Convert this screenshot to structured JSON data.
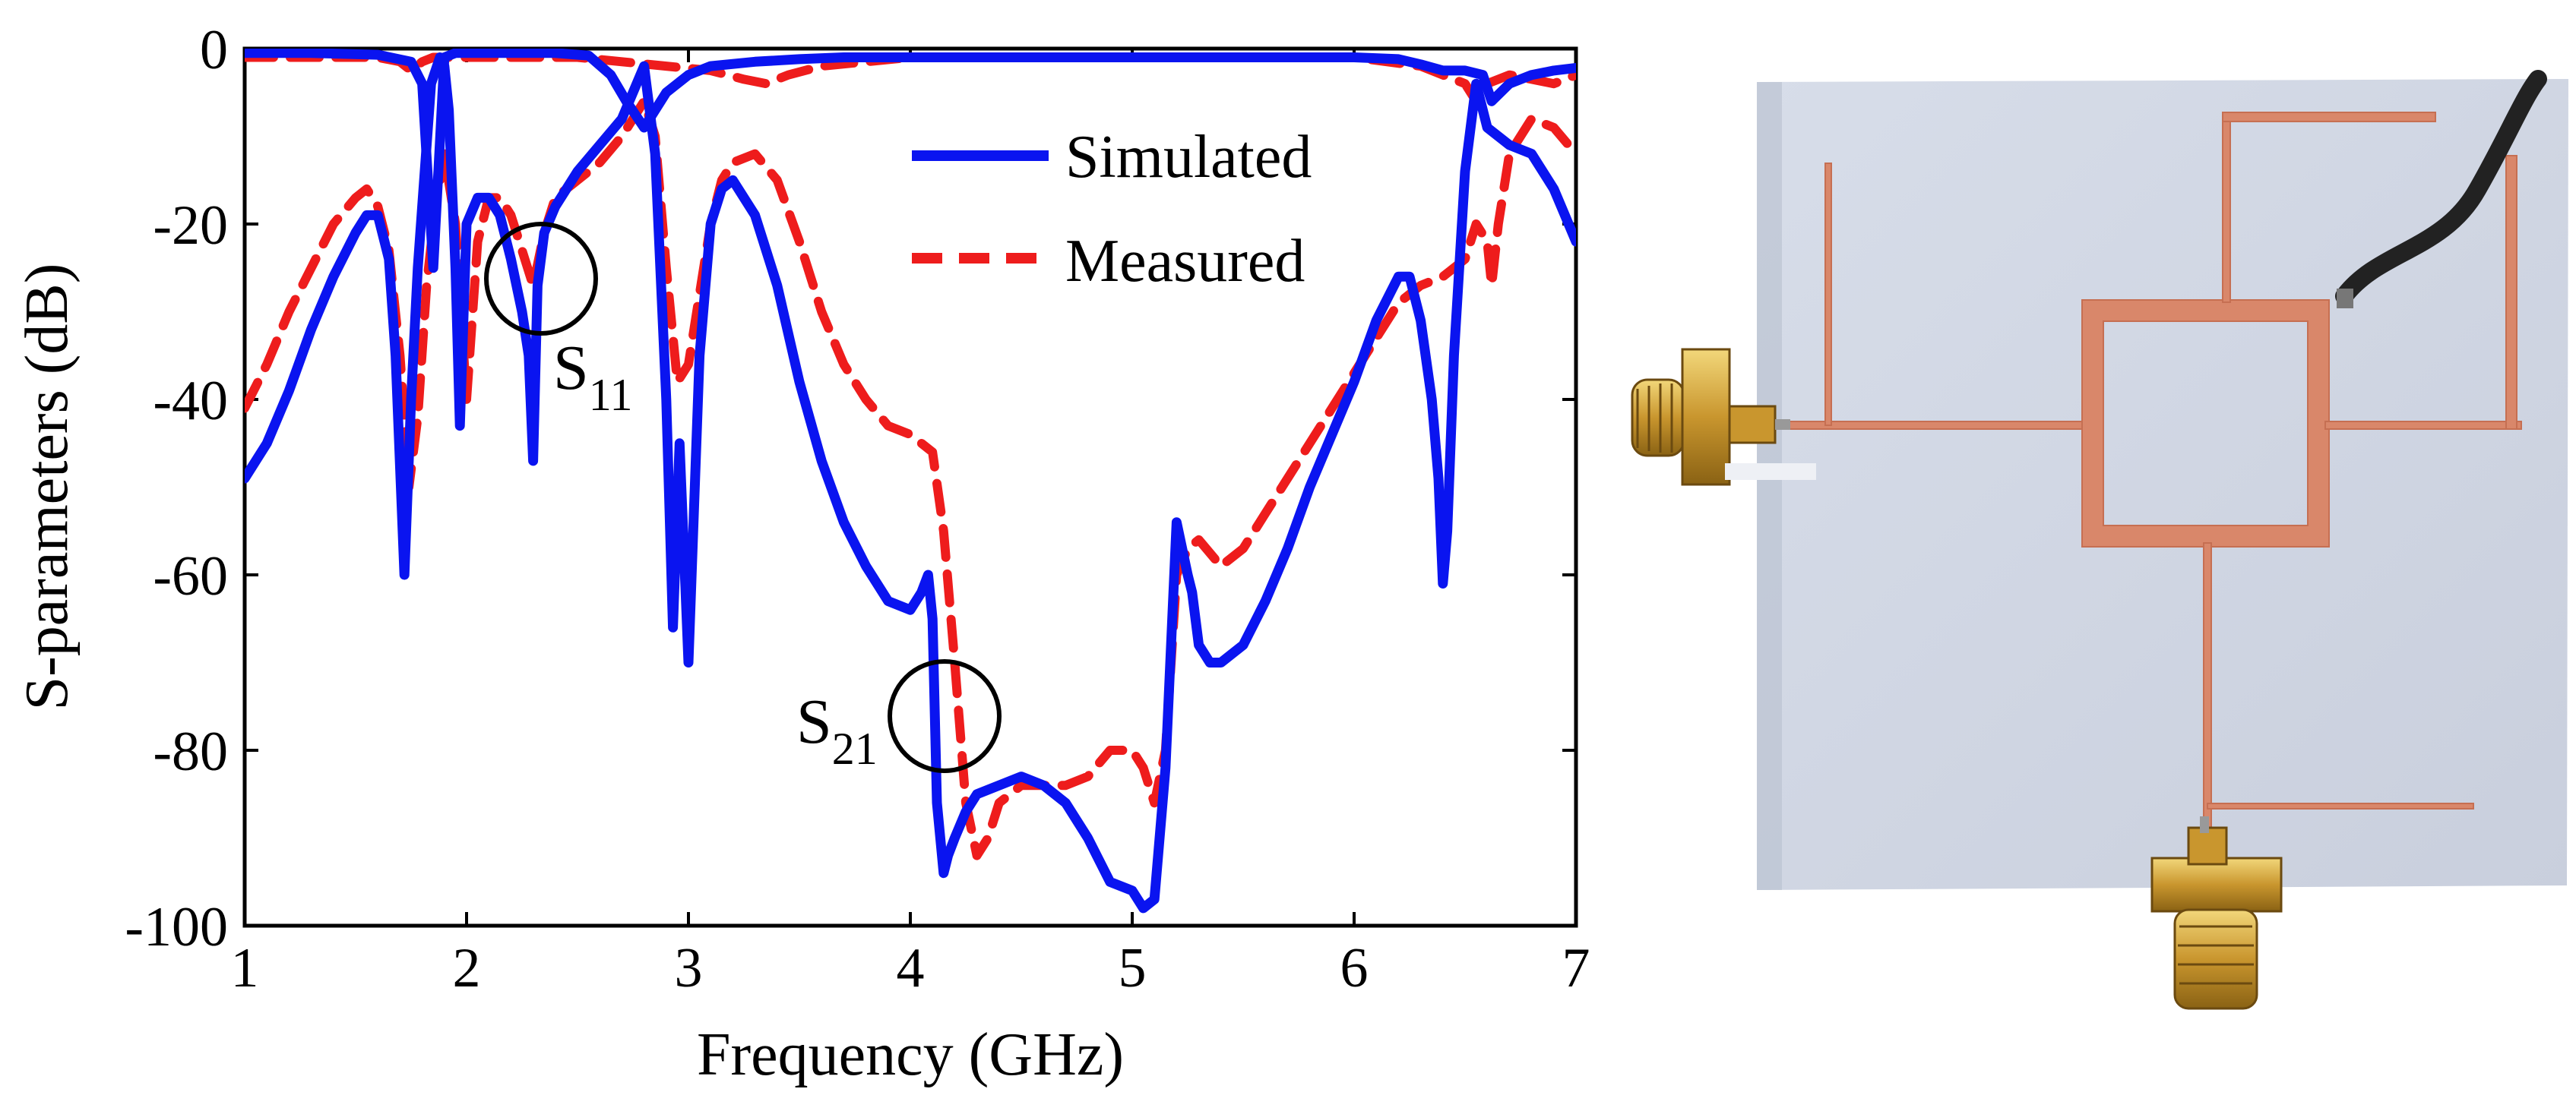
{
  "chart_data": {
    "type": "line",
    "xlabel": "Frequency (GHz)",
    "ylabel": "S-parameters (dB)",
    "xlim": [
      1,
      7
    ],
    "ylim": [
      -100,
      0
    ],
    "xticks": [
      "1",
      "2",
      "3",
      "4",
      "5",
      "6",
      "7"
    ],
    "yticks": [
      "0",
      "-20",
      "-40",
      "-60",
      "-80",
      "-100"
    ],
    "legend": {
      "position": "top-right",
      "entries": [
        "Simulated",
        "Measured"
      ]
    },
    "colors": {
      "simulated": "#0a14f0",
      "measured": "#ee1c1c"
    },
    "annotations": [
      {
        "text": "S",
        "sub": "11",
        "x": 2.32,
        "y": -26
      },
      {
        "text": "S",
        "sub": "21",
        "x": 4.2,
        "y": -76
      }
    ],
    "series": [
      {
        "name": "Simulated S11",
        "legend": "Simulated",
        "x": [
          1.0,
          1.1,
          1.2,
          1.3,
          1.4,
          1.5,
          1.55,
          1.6,
          1.65,
          1.68,
          1.72,
          1.75,
          1.78,
          1.8,
          1.84,
          1.88,
          1.9,
          1.92,
          1.95,
          1.97,
          2.0,
          2.05,
          2.1,
          2.15,
          2.2,
          2.25,
          2.28,
          2.3,
          2.32,
          2.35,
          2.4,
          2.45,
          2.5,
          2.6,
          2.7,
          2.8,
          2.85,
          2.9,
          2.93,
          2.96,
          3.0,
          3.05,
          3.1,
          3.15,
          3.2,
          3.3,
          3.4,
          3.5,
          3.6,
          3.7,
          3.8,
          3.9,
          4.0,
          4.05,
          4.08,
          4.1,
          4.12,
          4.15,
          4.17,
          4.2,
          4.25,
          4.3,
          4.4,
          4.5,
          4.6,
          4.7,
          4.8,
          4.9,
          5.0,
          5.05,
          5.1,
          5.15,
          5.2,
          5.25,
          5.27,
          5.3,
          5.35,
          5.4,
          5.5,
          5.6,
          5.7,
          5.8,
          5.9,
          6.0,
          6.1,
          6.2,
          6.25,
          6.3,
          6.35,
          6.38,
          6.4,
          6.42,
          6.45,
          6.5,
          6.55,
          6.6,
          6.65,
          6.7,
          6.8,
          6.9,
          7.0
        ],
        "y": [
          -49,
          -45,
          -39,
          -32,
          -26,
          -21,
          -19,
          -19,
          -24,
          -35,
          -60,
          -40,
          -25,
          -18,
          -4,
          -1,
          -2,
          -7,
          -25,
          -43,
          -20,
          -17,
          -17,
          -19,
          -24,
          -30,
          -35,
          -47,
          -27,
          -21,
          -18,
          -16,
          -14,
          -11,
          -8,
          -2,
          -12,
          -40,
          -66,
          -45,
          -70,
          -35,
          -20,
          -16,
          -15,
          -19,
          -27,
          -38,
          -47,
          -54,
          -59,
          -63,
          -64,
          -62,
          -60,
          -65,
          -86,
          -94,
          -92,
          -90,
          -87,
          -85,
          -84,
          -83,
          -84,
          -86,
          -90,
          -95,
          -96,
          -98,
          -97,
          -82,
          -54,
          -60,
          -62,
          -68,
          -70,
          -70,
          -68,
          -63,
          -57,
          -50,
          -44,
          -38,
          -31,
          -26,
          -26,
          -31,
          -40,
          -49,
          -61,
          -55,
          -35,
          -14,
          -4,
          -9,
          -10,
          -11,
          -12,
          -16,
          -22
        ]
      },
      {
        "name": "Simulated S21",
        "legend": "Simulated",
        "x": [
          1.0,
          1.3,
          1.6,
          1.75,
          1.8,
          1.85,
          1.9,
          1.95,
          2.0,
          2.05,
          2.1,
          2.2,
          2.4,
          2.55,
          2.65,
          2.72,
          2.8,
          2.9,
          3.0,
          3.1,
          3.3,
          3.5,
          3.7,
          4.0,
          4.5,
          5.0,
          5.5,
          6.0,
          6.2,
          6.3,
          6.4,
          6.5,
          6.58,
          6.62,
          6.7,
          6.8,
          6.9,
          7.0
        ],
        "y": [
          -0.5,
          -0.5,
          -0.7,
          -1.5,
          -4,
          -25,
          -1,
          -0.5,
          -0.5,
          -0.5,
          -0.5,
          -0.5,
          -0.5,
          -0.8,
          -3,
          -6,
          -9,
          -5,
          -3,
          -2,
          -1.5,
          -1.2,
          -1.0,
          -1.0,
          -1.0,
          -1.0,
          -1.0,
          -1.0,
          -1.2,
          -1.8,
          -2.5,
          -2.5,
          -3,
          -6,
          -4,
          -3,
          -2.5,
          -2.2
        ]
      },
      {
        "name": "Measured S11",
        "legend": "Measured",
        "x": [
          1.0,
          1.1,
          1.2,
          1.3,
          1.4,
          1.5,
          1.55,
          1.6,
          1.65,
          1.7,
          1.74,
          1.78,
          1.82,
          1.86,
          1.9,
          1.95,
          2.0,
          2.05,
          2.1,
          2.15,
          2.2,
          2.25,
          2.3,
          2.35,
          2.4,
          2.5,
          2.6,
          2.7,
          2.8,
          2.85,
          2.9,
          2.95,
          3.0,
          3.05,
          3.1,
          3.15,
          3.2,
          3.3,
          3.4,
          3.5,
          3.6,
          3.7,
          3.8,
          3.9,
          4.0,
          4.1,
          4.15,
          4.2,
          4.25,
          4.3,
          4.35,
          4.4,
          4.5,
          4.6,
          4.7,
          4.8,
          4.9,
          5.0,
          5.05,
          5.1,
          5.15,
          5.2,
          5.25,
          5.3,
          5.4,
          5.5,
          5.6,
          5.7,
          5.8,
          5.9,
          6.0,
          6.1,
          6.2,
          6.3,
          6.4,
          6.5,
          6.55,
          6.6,
          6.62,
          6.65,
          6.7,
          6.8,
          6.9,
          7.0
        ],
        "y": [
          -41,
          -36,
          -30,
          -25,
          -20,
          -17,
          -16,
          -18,
          -23,
          -35,
          -50,
          -42,
          -27,
          -18,
          -12,
          -20,
          -40,
          -22,
          -17,
          -17,
          -19,
          -23,
          -27,
          -21,
          -17,
          -15,
          -13,
          -10,
          -6,
          -10,
          -25,
          -38,
          -36,
          -28,
          -20,
          -15,
          -13,
          -12,
          -15,
          -22,
          -30,
          -36,
          -40,
          -43,
          -44,
          -46,
          -55,
          -70,
          -86,
          -92,
          -90,
          -86,
          -84,
          -84,
          -84,
          -83,
          -80,
          -80,
          -82,
          -86,
          -80,
          -60,
          -57,
          -56,
          -59,
          -57,
          -53,
          -49,
          -45,
          -41,
          -37,
          -33,
          -29,
          -27,
          -26,
          -24,
          -20,
          -22,
          -27,
          -20,
          -12,
          -8,
          -9,
          -12
        ]
      },
      {
        "name": "Measured S21",
        "legend": "Measured",
        "x": [
          1.0,
          1.3,
          1.6,
          1.7,
          1.75,
          1.8,
          1.85,
          1.9,
          2.0,
          2.1,
          2.3,
          2.5,
          2.7,
          2.9,
          3.1,
          3.25,
          3.35,
          3.45,
          3.6,
          3.8,
          4.0,
          4.5,
          5.0,
          5.5,
          6.0,
          6.3,
          6.4,
          6.5,
          6.55,
          6.6,
          6.7,
          6.8,
          6.9,
          7.0
        ],
        "y": [
          -1,
          -1,
          -1,
          -1.5,
          -2.5,
          -1.5,
          -1,
          -1,
          -1,
          -1,
          -1,
          -1,
          -1.5,
          -2,
          -2.5,
          -3.5,
          -4,
          -3,
          -2,
          -1.5,
          -1,
          -1,
          -1,
          -1,
          -1,
          -2,
          -3,
          -4,
          -6,
          -4,
          -3,
          -3.5,
          -4,
          -3
        ]
      }
    ]
  },
  "photo": {
    "description_icon": "fabricated-pcb-photo"
  }
}
